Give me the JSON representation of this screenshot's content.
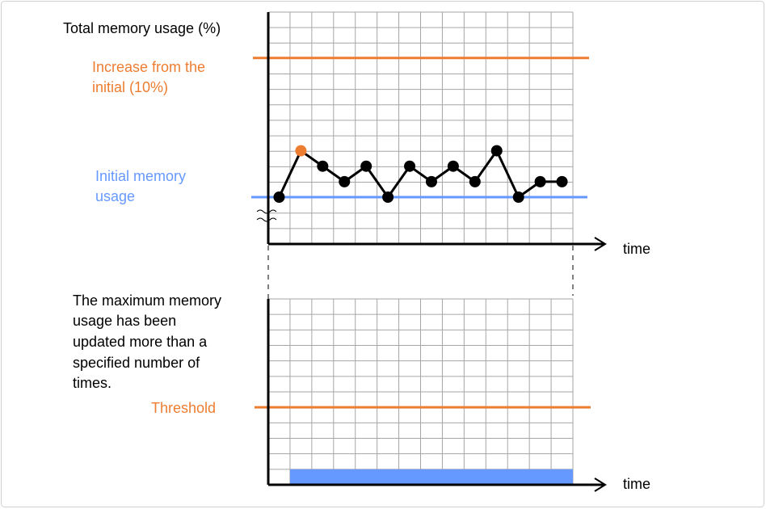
{
  "colors": {
    "orange": "#ED7D31",
    "blue": "#6699FF",
    "grid": "#A6A6A6",
    "axis": "#000000"
  },
  "top_chart": {
    "ylabel": "Total memory usage (%)",
    "xlabel": "time",
    "upper_line_label": [
      "Increase from the",
      "initial (10%)"
    ],
    "baseline_label": [
      "Initial memory",
      "usage"
    ],
    "axis_break_icon": "wavy-break",
    "baseline_level": 0,
    "upper_line_level": 9,
    "series_levels": [
      0,
      3,
      2,
      1,
      2,
      0,
      2,
      1,
      2,
      1,
      3,
      0,
      1,
      1
    ],
    "highlighted_point_index": 1
  },
  "bottom_chart": {
    "description_label": [
      "The maximum memory",
      "usage has been",
      "updated more than a",
      "specified number of",
      "times."
    ],
    "threshold_label": "Threshold",
    "xlabel": "time",
    "threshold_level": 5,
    "bar_start_column": 1,
    "bar_level": 1
  }
}
